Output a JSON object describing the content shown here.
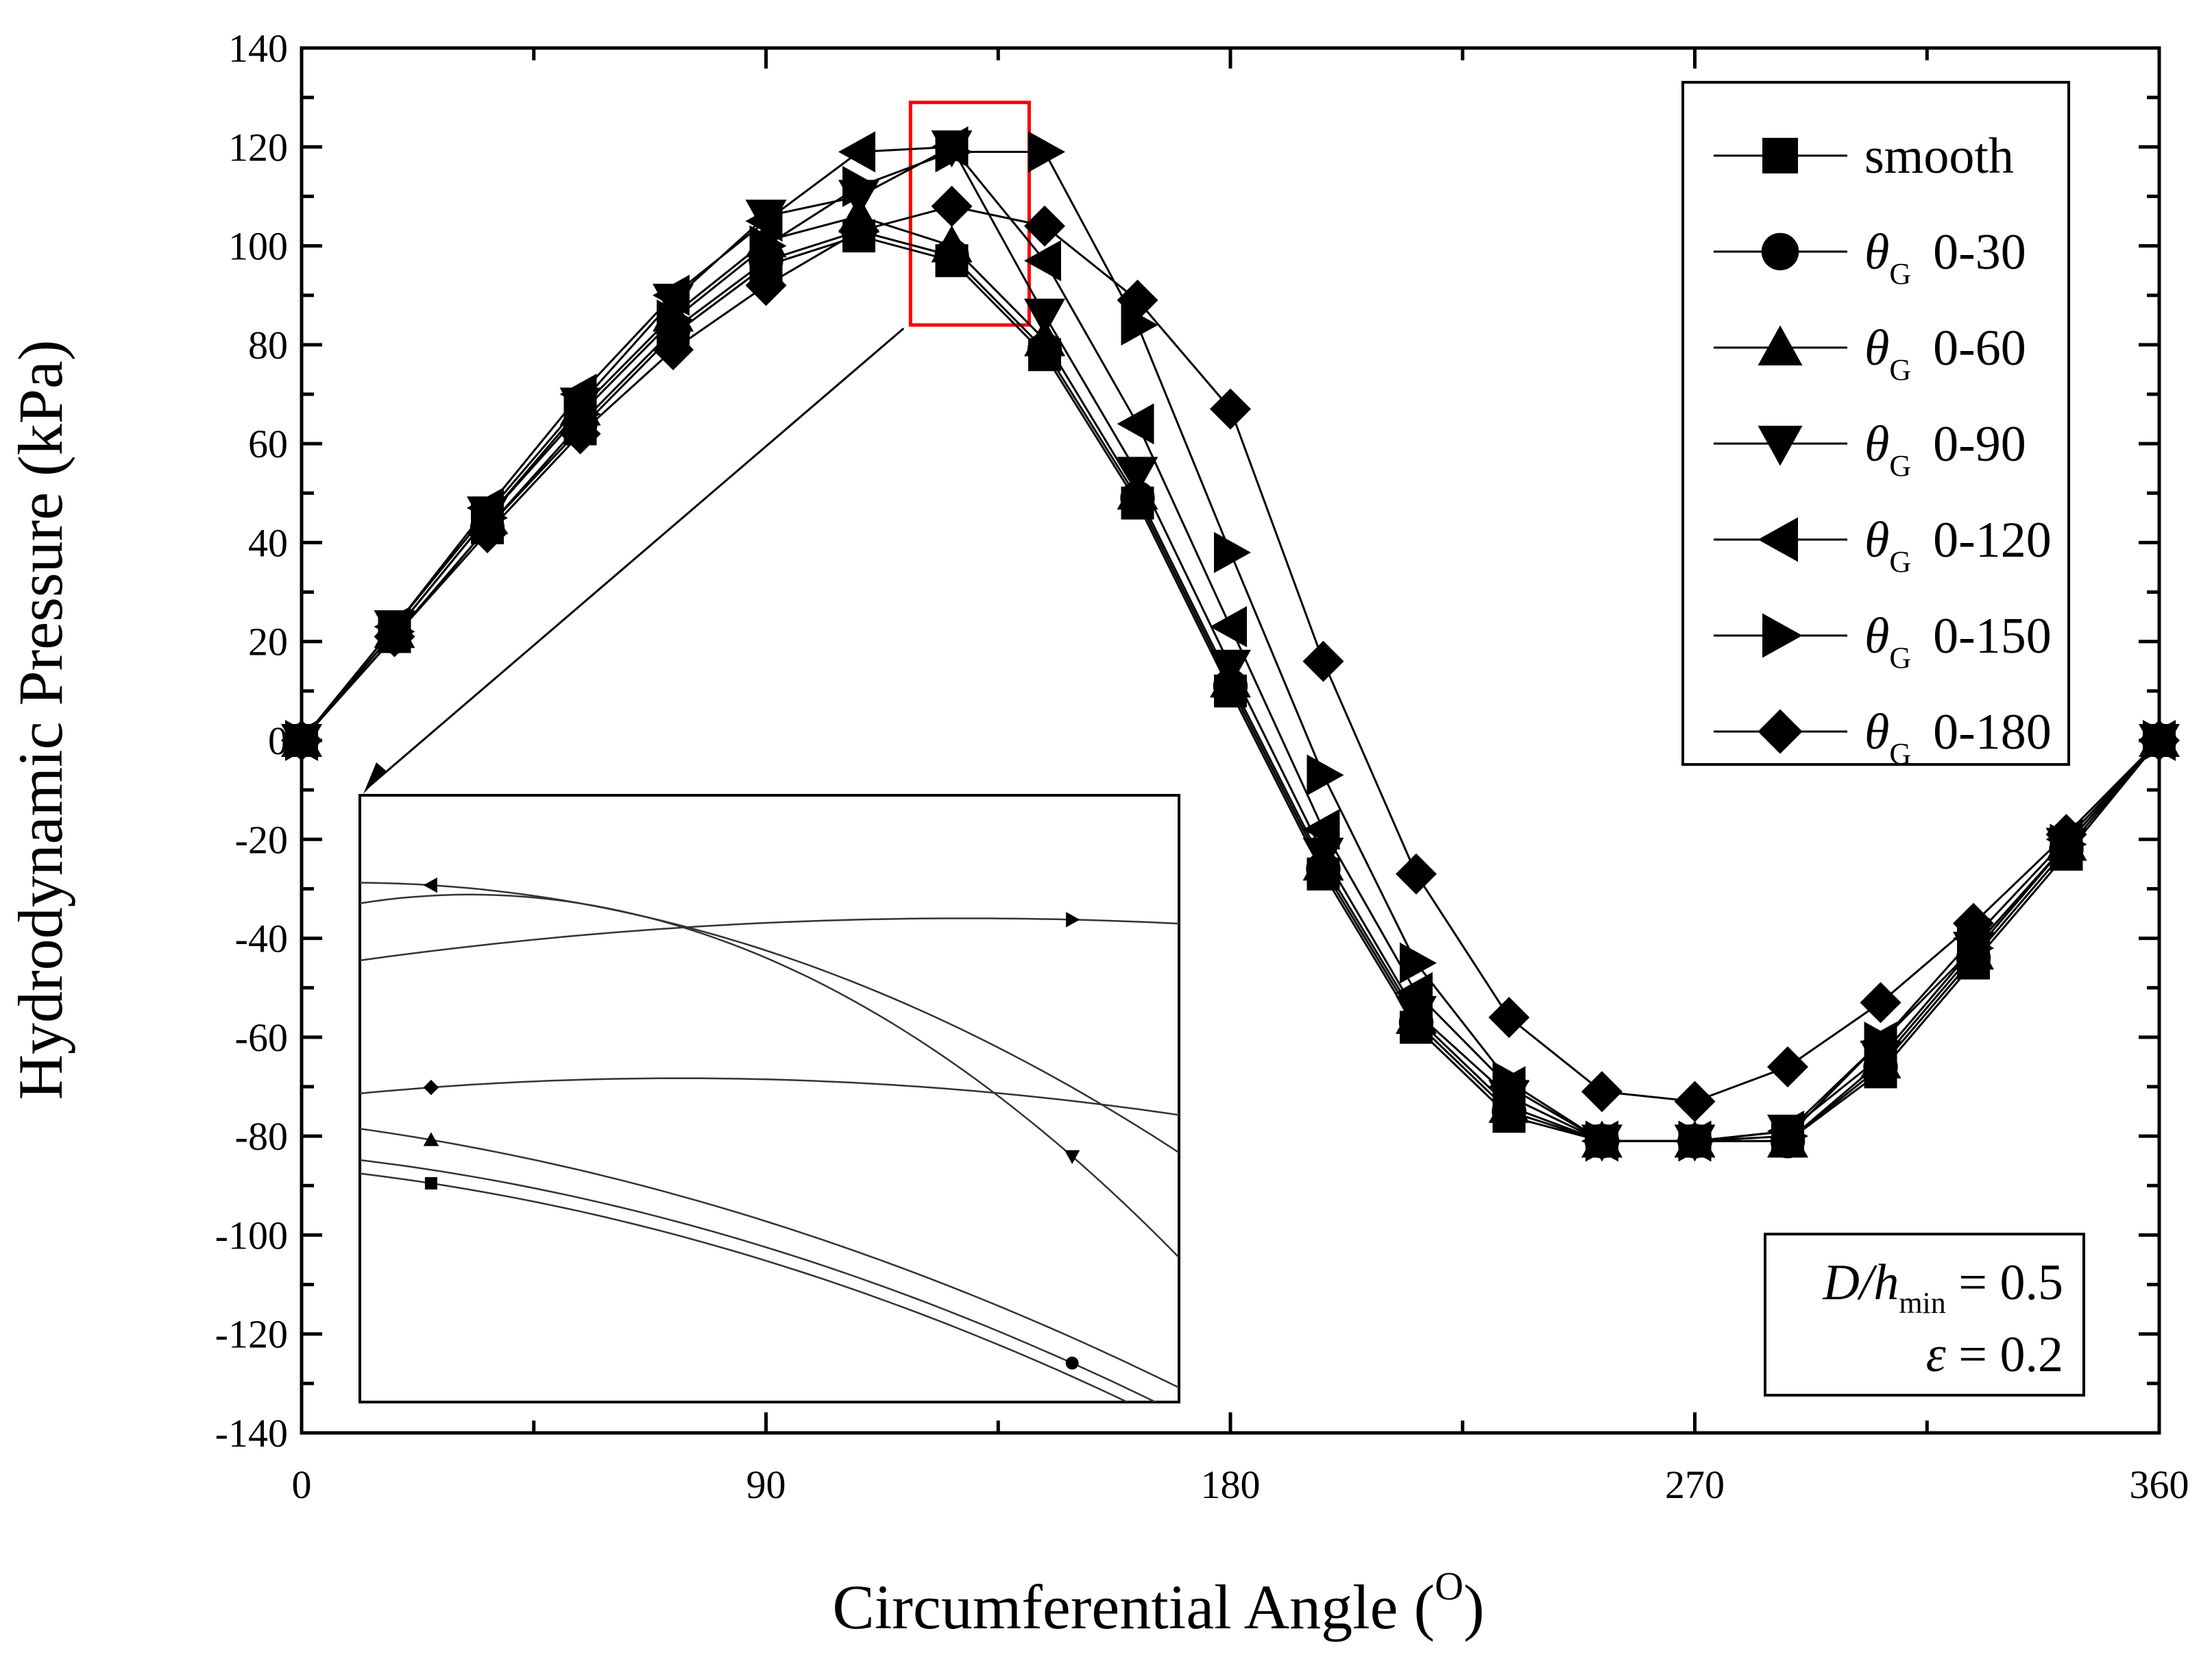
{
  "chart_data": {
    "type": "line",
    "title": "",
    "xlabel": "Circumferential Angle (",
    "xlabel_sup": "O",
    "xlabel_close": ")",
    "ylabel": "Hydrodynamic Pressure (kPa)",
    "xlim": [
      0,
      360
    ],
    "ylim": [
      -140,
      140
    ],
    "xticks": [
      0,
      90,
      180,
      270,
      360
    ],
    "yticks": [
      140,
      120,
      100,
      80,
      60,
      40,
      20,
      0,
      -20,
      -40,
      -60,
      -80,
      -100,
      -120,
      -140
    ],
    "x": [
      0,
      18,
      36,
      54,
      72,
      90,
      108,
      126,
      144,
      162,
      180,
      198,
      216,
      234,
      252,
      270,
      288,
      306,
      324,
      342,
      360
    ],
    "series": [
      {
        "name": "smooth",
        "prefix": "",
        "subscript": "",
        "label": "smooth",
        "marker": "square",
        "values": [
          0,
          21,
          43,
          63,
          82,
          96,
          102,
          97,
          78,
          48,
          10,
          -27,
          -58,
          -76,
          -81,
          -81,
          -81,
          -67,
          -45,
          -23,
          0
        ]
      },
      {
        "name": "θG 0-30",
        "prefix": "θ",
        "subscript": "G",
        "label": "0-30",
        "marker": "circle",
        "values": [
          0,
          21,
          43,
          64,
          83,
          97,
          103,
          98,
          79,
          49,
          11,
          -26,
          -57,
          -75,
          -81,
          -81,
          -81,
          -66,
          -44,
          -22,
          0
        ]
      },
      {
        "name": "θG 0-60",
        "prefix": "θ",
        "subscript": "G",
        "label": "0-60",
        "marker": "triangle-up",
        "values": [
          0,
          22,
          45,
          67,
          86,
          101,
          106,
          100,
          81,
          50,
          12,
          -25,
          -56,
          -74,
          -81,
          -81,
          -81,
          -65,
          -43,
          -21,
          0
        ]
      },
      {
        "name": "θG 0-90",
        "prefix": "θ",
        "subscript": "G",
        "label": "0-90",
        "marker": "triangle-down",
        "values": [
          0,
          23,
          46,
          68,
          89,
          106,
          110,
          120,
          86,
          54,
          15,
          -23,
          -55,
          -72,
          -81,
          -81,
          -79,
          -64,
          -42,
          -21,
          0
        ]
      },
      {
        "name": "θG 0-120",
        "prefix": "θ",
        "subscript": "G",
        "label": "0-120",
        "marker": "triangle-left",
        "values": [
          0,
          23,
          47,
          70,
          90,
          105,
          119,
          120,
          97,
          64,
          23,
          -18,
          -51,
          -70,
          -81,
          -81,
          -79,
          -61,
          -40,
          -20,
          0
        ]
      },
      {
        "name": "θG 0-150",
        "prefix": "θ",
        "subscript": "G",
        "label": "0-150",
        "marker": "triangle-right",
        "values": [
          0,
          22,
          45,
          66,
          85,
          100,
          112,
          119,
          119,
          84,
          38,
          -7,
          -45,
          -69,
          -81,
          -81,
          -80,
          -61,
          -42,
          -21,
          0
        ]
      },
      {
        "name": "θG 0-180",
        "prefix": "θ",
        "subscript": "G",
        "label": "0-180",
        "marker": "diamond",
        "values": [
          0,
          21,
          42,
          62,
          79,
          92,
          103,
          108,
          104,
          89,
          67,
          16,
          -27,
          -56,
          -71,
          -73,
          -66,
          -53,
          -37,
          -19,
          0
        ]
      }
    ],
    "legend_position": "top-right",
    "annotation": {
      "ratio_label": "D/h",
      "ratio_sub": "min",
      "ratio_value": " = 0.5",
      "ecc_label": "ε",
      "ecc_value": " = 0.2",
      "position": "bottom-right"
    },
    "inset": {
      "description": "zoom of the boxed region",
      "xlim": [
        118,
        141
      ],
      "ylim": [
        84,
        129
      ]
    },
    "colors": {
      "line": "#000000",
      "highlight": "#ff0000",
      "background": "#ffffff"
    }
  }
}
